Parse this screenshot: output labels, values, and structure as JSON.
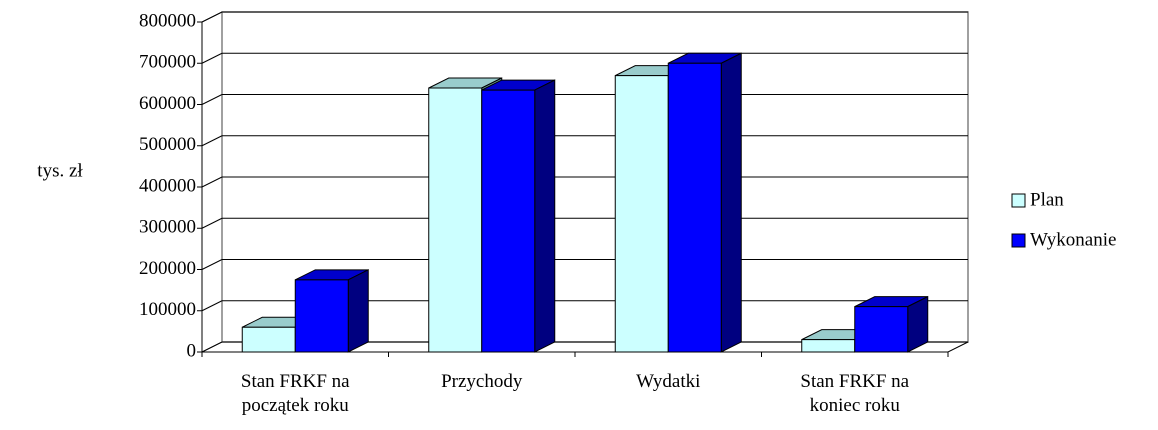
{
  "chart_data": {
    "type": "bar3d",
    "y_label": "tys. zł",
    "categories": [
      "Stan FRKF na początek roku",
      "Przychody",
      "Wydatki",
      "Stan FRKF na koniec roku"
    ],
    "series": [
      {
        "name": "Plan",
        "color": "#ccffff",
        "values": [
          60000,
          640000,
          670000,
          30000
        ]
      },
      {
        "name": "Wykonanie",
        "color": "#0000ff",
        "values": [
          175000,
          635000,
          700000,
          110000
        ]
      }
    ],
    "ylim": [
      0,
      800000
    ],
    "yticks": [
      0,
      100000,
      200000,
      300000,
      400000,
      500000,
      600000,
      700000,
      800000
    ],
    "grid": true,
    "legend": "right"
  }
}
